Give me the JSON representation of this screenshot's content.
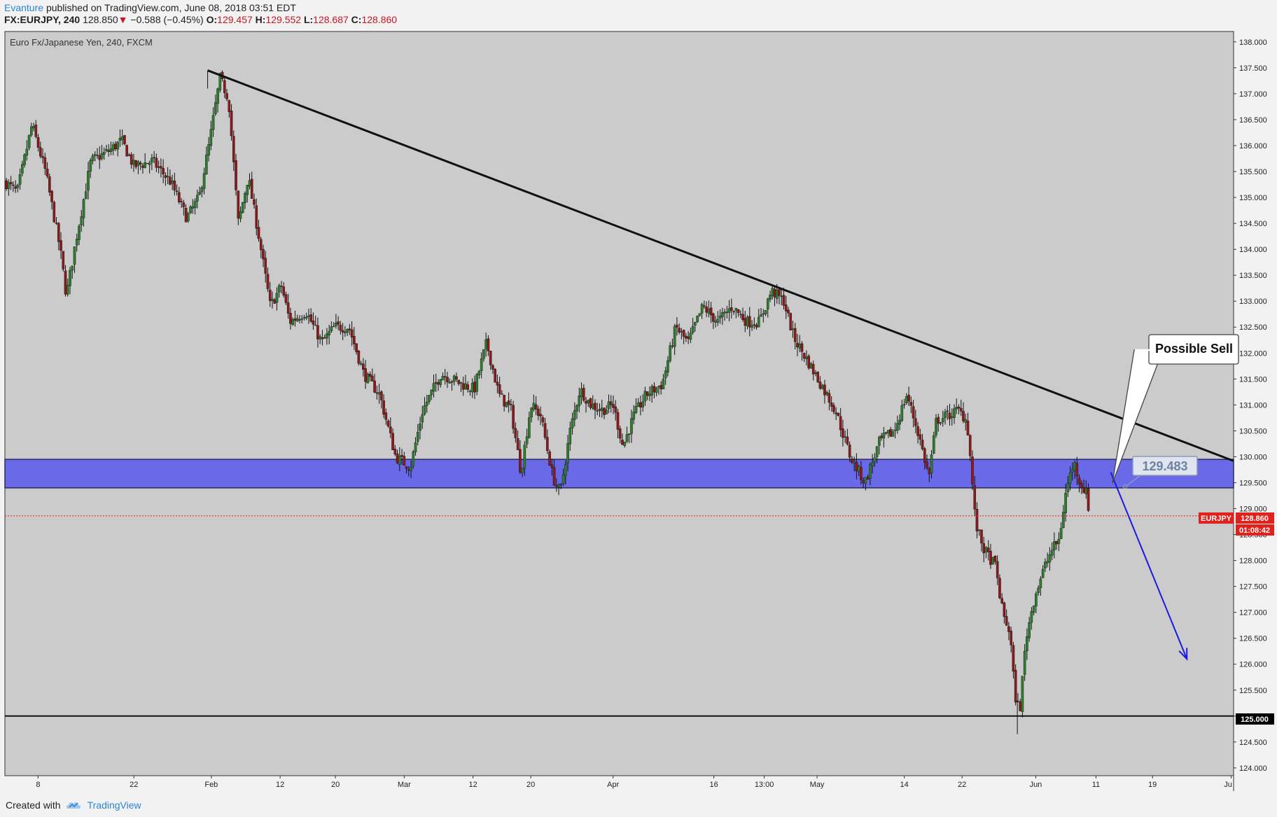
{
  "header": {
    "author": "Evanture",
    "published_text": "published on TradingView.com, June 08, 2018 03:51 EDT",
    "symbol": "FX:EURJPY, 240",
    "last": "128.850",
    "change": "−0.588 (−0.45%)",
    "open_label": "O:",
    "open": "129.457",
    "high_label": "H:",
    "high": "129.552",
    "low_label": "L:",
    "low": "128.687",
    "close_label": "C:",
    "close": "128.860"
  },
  "chart_title": "Euro Fx/Japanese Yen, 240, FXCM",
  "annotations": {
    "callout": "Possible Sell",
    "zone_price": "129.483",
    "support_tag": "125.000",
    "symbol_tag": "EURJPY",
    "price_tag": "128.860",
    "countdown_tag": "01:08:42"
  },
  "footer": {
    "created_with": "Created with",
    "brand": "TradingView"
  },
  "colors": {
    "plot_bg": "#cbcbcb",
    "up": "#2e7d2e",
    "down": "#8b1a1a",
    "zone": "#6a6ae8",
    "trendline": "#111111",
    "arrow": "#1a1ae0",
    "price_line": "#e0211c"
  },
  "chart_data": {
    "type": "candlestick",
    "title": "Euro Fx/Japanese Yen, 240, FXCM",
    "ylim": [
      123.85,
      138.2
    ],
    "y_ticks": [
      "124.000",
      "124.500",
      "125.000",
      "125.500",
      "126.000",
      "126.500",
      "127.000",
      "127.500",
      "128.000",
      "128.500",
      "129.000",
      "129.500",
      "130.000",
      "130.500",
      "131.000",
      "131.500",
      "132.000",
      "132.500",
      "133.000",
      "133.500",
      "134.000",
      "134.500",
      "135.000",
      "135.500",
      "136.000",
      "136.500",
      "137.000",
      "137.500",
      "138.000"
    ],
    "x_ticks": [
      {
        "label": "8",
        "x": 0.027
      },
      {
        "label": "22",
        "x": 0.105
      },
      {
        "label": "Feb",
        "x": 0.168
      },
      {
        "label": "12",
        "x": 0.224
      },
      {
        "label": "20",
        "x": 0.269
      },
      {
        "label": "Mar",
        "x": 0.325
      },
      {
        "label": "12",
        "x": 0.381
      },
      {
        "label": "20",
        "x": 0.428
      },
      {
        "label": "Apr",
        "x": 0.495
      },
      {
        "label": "16",
        "x": 0.577
      },
      {
        "label": "13:00",
        "x": 0.618
      },
      {
        "label": "May",
        "x": 0.661
      },
      {
        "label": "14",
        "x": 0.732
      },
      {
        "label": "22",
        "x": 0.779
      },
      {
        "label": "Jun",
        "x": 0.839
      },
      {
        "label": "11",
        "x": 0.888
      },
      {
        "label": "19",
        "x": 0.934
      },
      {
        "label": "Ju",
        "x": 0.998
      }
    ],
    "path_anchors": [
      [
        0.0,
        135.3
      ],
      [
        0.01,
        135.1
      ],
      [
        0.022,
        136.4
      ],
      [
        0.033,
        135.5
      ],
      [
        0.045,
        134.0
      ],
      [
        0.05,
        133.1
      ],
      [
        0.058,
        134.2
      ],
      [
        0.07,
        135.7
      ],
      [
        0.085,
        135.9
      ],
      [
        0.095,
        136.1
      ],
      [
        0.105,
        135.6
      ],
      [
        0.12,
        135.7
      ],
      [
        0.135,
        135.3
      ],
      [
        0.148,
        134.6
      ],
      [
        0.158,
        135.0
      ],
      [
        0.166,
        136.0
      ],
      [
        0.175,
        137.3
      ],
      [
        0.182,
        136.9
      ],
      [
        0.19,
        134.5
      ],
      [
        0.198,
        135.4
      ],
      [
        0.207,
        134.2
      ],
      [
        0.216,
        132.9
      ],
      [
        0.225,
        133.3
      ],
      [
        0.232,
        132.6
      ],
      [
        0.245,
        132.8
      ],
      [
        0.258,
        132.2
      ],
      [
        0.268,
        132.5
      ],
      [
        0.28,
        132.5
      ],
      [
        0.292,
        131.6
      ],
      [
        0.305,
        131.2
      ],
      [
        0.318,
        130.0
      ],
      [
        0.33,
        129.8
      ],
      [
        0.34,
        130.9
      ],
      [
        0.355,
        131.6
      ],
      [
        0.372,
        131.4
      ],
      [
        0.382,
        131.3
      ],
      [
        0.392,
        132.2
      ],
      [
        0.402,
        131.2
      ],
      [
        0.412,
        130.9
      ],
      [
        0.42,
        129.7
      ],
      [
        0.428,
        131.0
      ],
      [
        0.436,
        130.8
      ],
      [
        0.446,
        129.6
      ],
      [
        0.452,
        129.3
      ],
      [
        0.46,
        130.5
      ],
      [
        0.468,
        131.3
      ],
      [
        0.477,
        131.0
      ],
      [
        0.486,
        130.9
      ],
      [
        0.495,
        131.0
      ],
      [
        0.503,
        130.2
      ],
      [
        0.512,
        130.8
      ],
      [
        0.522,
        131.2
      ],
      [
        0.535,
        131.4
      ],
      [
        0.546,
        132.5
      ],
      [
        0.556,
        132.2
      ],
      [
        0.568,
        132.9
      ],
      [
        0.58,
        132.6
      ],
      [
        0.592,
        132.9
      ],
      [
        0.604,
        132.6
      ],
      [
        0.614,
        132.6
      ],
      [
        0.624,
        133.2
      ],
      [
        0.634,
        133.0
      ],
      [
        0.642,
        132.3
      ],
      [
        0.652,
        131.9
      ],
      [
        0.664,
        131.4
      ],
      [
        0.676,
        130.9
      ],
      [
        0.688,
        130.0
      ],
      [
        0.7,
        129.5
      ],
      [
        0.712,
        130.3
      ],
      [
        0.724,
        130.5
      ],
      [
        0.734,
        131.2
      ],
      [
        0.744,
        130.4
      ],
      [
        0.752,
        129.6
      ],
      [
        0.758,
        130.7
      ],
      [
        0.768,
        130.8
      ],
      [
        0.776,
        130.9
      ],
      [
        0.783,
        130.7
      ],
      [
        0.786,
        129.9
      ],
      [
        0.79,
        128.7
      ],
      [
        0.797,
        128.2
      ],
      [
        0.806,
        127.9
      ],
      [
        0.812,
        127.0
      ],
      [
        0.818,
        126.6
      ],
      [
        0.822,
        125.4
      ],
      [
        0.826,
        125.1
      ],
      [
        0.831,
        126.5
      ],
      [
        0.838,
        127.3
      ],
      [
        0.845,
        127.8
      ],
      [
        0.852,
        128.2
      ],
      [
        0.858,
        128.4
      ],
      [
        0.864,
        129.4
      ],
      [
        0.87,
        129.9
      ],
      [
        0.875,
        129.5
      ],
      [
        0.88,
        129.3
      ],
      [
        0.883,
        128.86
      ]
    ],
    "price_low": 124.65,
    "price_high": 137.45,
    "current_price": 128.86,
    "support_line": 125.0,
    "resistance_zone": [
      129.4,
      129.95
    ],
    "zone_label_price": 129.483,
    "trendline": {
      "from": [
        0.165,
        137.45
      ],
      "to": [
        1.0,
        129.92
      ]
    },
    "projection_arrow": {
      "from": [
        0.9,
        129.7
      ],
      "to": [
        0.962,
        126.1
      ]
    }
  }
}
